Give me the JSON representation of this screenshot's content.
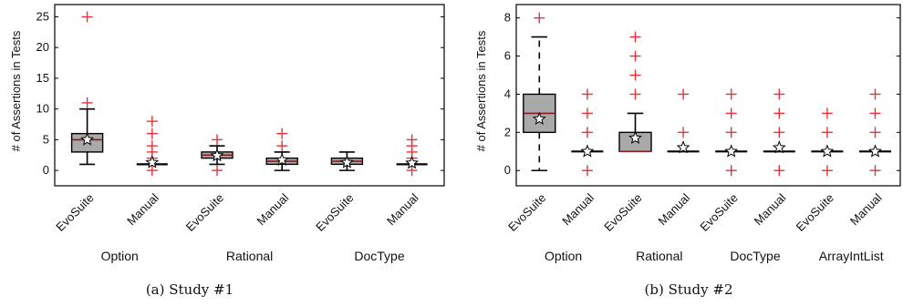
{
  "chart_data": [
    {
      "type": "box",
      "caption": "(a) Study #1",
      "ylabel": "# of Assertions in Tests",
      "ylim": [
        -2.5,
        27
      ],
      "yticks": [
        0,
        5,
        10,
        15,
        20,
        25
      ],
      "grid": false,
      "box_color": "#a9a9a9",
      "median_color": "#8b1a1a",
      "outlier_color": "#e8333a",
      "groups": [
        "Option",
        "Rational",
        "DocType"
      ],
      "boxes": [
        {
          "label": "EvoSuite",
          "group": "Option",
          "q1": 3,
          "median": 5,
          "q3": 6,
          "whisker_low": 1,
          "whisker_high": 10,
          "mean": 5,
          "outliers": [
            11,
            25
          ]
        },
        {
          "label": "Manual",
          "group": "Option",
          "q1": 1,
          "median": 1,
          "q3": 1,
          "whisker_low": 1,
          "whisker_high": 1,
          "mean": 1.3,
          "outliers": [
            0,
            2,
            3,
            4,
            6,
            8
          ]
        },
        {
          "label": "EvoSuite",
          "group": "Rational",
          "q1": 2,
          "median": 2.5,
          "q3": 3,
          "whisker_low": 1,
          "whisker_high": 4,
          "mean": 2.4,
          "outliers": [
            0,
            5
          ]
        },
        {
          "label": "Manual",
          "group": "Rational",
          "q1": 1,
          "median": 1.5,
          "q3": 2,
          "whisker_low": 0,
          "whisker_high": 3,
          "mean": 1.7,
          "outliers": [
            4,
            6
          ]
        },
        {
          "label": "EvoSuite",
          "group": "DocType",
          "q1": 1,
          "median": 1.5,
          "q3": 2,
          "whisker_low": 0,
          "whisker_high": 3,
          "mean": 1.3,
          "outliers": []
        },
        {
          "label": "Manual",
          "group": "DocType",
          "q1": 1,
          "median": 1,
          "q3": 1,
          "whisker_low": 1,
          "whisker_high": 1,
          "mean": 1.2,
          "outliers": [
            0,
            2,
            3,
            4,
            5
          ]
        }
      ]
    },
    {
      "type": "box",
      "caption": "(b) Study #2",
      "ylabel": "# of Assertions in Tests",
      "ylim": [
        -0.8,
        8.7
      ],
      "yticks": [
        0,
        2,
        4,
        6,
        8
      ],
      "grid": false,
      "box_color": "#a9a9a9",
      "median_color": "#8b1a1a",
      "outlier_color": "#e8333a",
      "groups": [
        "Option",
        "Rational",
        "DocType",
        "ArrayIntList"
      ],
      "boxes": [
        {
          "label": "EvoSuite",
          "group": "Option",
          "q1": 2,
          "median": 3,
          "q3": 4,
          "whisker_low": 0,
          "whisker_high": 7,
          "whisker_style": "dashed",
          "mean": 2.7,
          "outliers": [
            8
          ]
        },
        {
          "label": "Manual",
          "group": "Option",
          "q1": 1,
          "median": 1,
          "q3": 1,
          "whisker_low": 1,
          "whisker_high": 1,
          "mean": 1,
          "outliers": [
            0,
            2,
            3,
            4
          ]
        },
        {
          "label": "EvoSuite",
          "group": "Rational",
          "q1": 1,
          "median": 1,
          "q3": 2,
          "whisker_low": 1,
          "whisker_high": 3,
          "mean": 1.7,
          "outliers": [
            4,
            5,
            6,
            7
          ]
        },
        {
          "label": "Manual",
          "group": "Rational",
          "q1": 1,
          "median": 1,
          "q3": 1,
          "whisker_low": 1,
          "whisker_high": 1,
          "mean": 1.2,
          "outliers": [
            2,
            4
          ]
        },
        {
          "label": "EvoSuite",
          "group": "DocType",
          "q1": 1,
          "median": 1,
          "q3": 1,
          "whisker_low": 1,
          "whisker_high": 1,
          "mean": 1,
          "outliers": [
            0,
            2,
            3,
            4
          ]
        },
        {
          "label": "Manual",
          "group": "DocType",
          "q1": 1,
          "median": 1,
          "q3": 1,
          "whisker_low": 1,
          "whisker_high": 1,
          "mean": 1.2,
          "outliers": [
            0,
            2,
            3,
            4
          ]
        },
        {
          "label": "EvoSuite",
          "group": "ArrayIntList",
          "q1": 1,
          "median": 1,
          "q3": 1,
          "whisker_low": 1,
          "whisker_high": 1,
          "mean": 1,
          "outliers": [
            0,
            2,
            3
          ]
        },
        {
          "label": "Manual",
          "group": "ArrayIntList",
          "q1": 1,
          "median": 1,
          "q3": 1,
          "whisker_low": 1,
          "whisker_high": 1,
          "mean": 1,
          "outliers": [
            0,
            2,
            3,
            4
          ]
        }
      ]
    }
  ]
}
